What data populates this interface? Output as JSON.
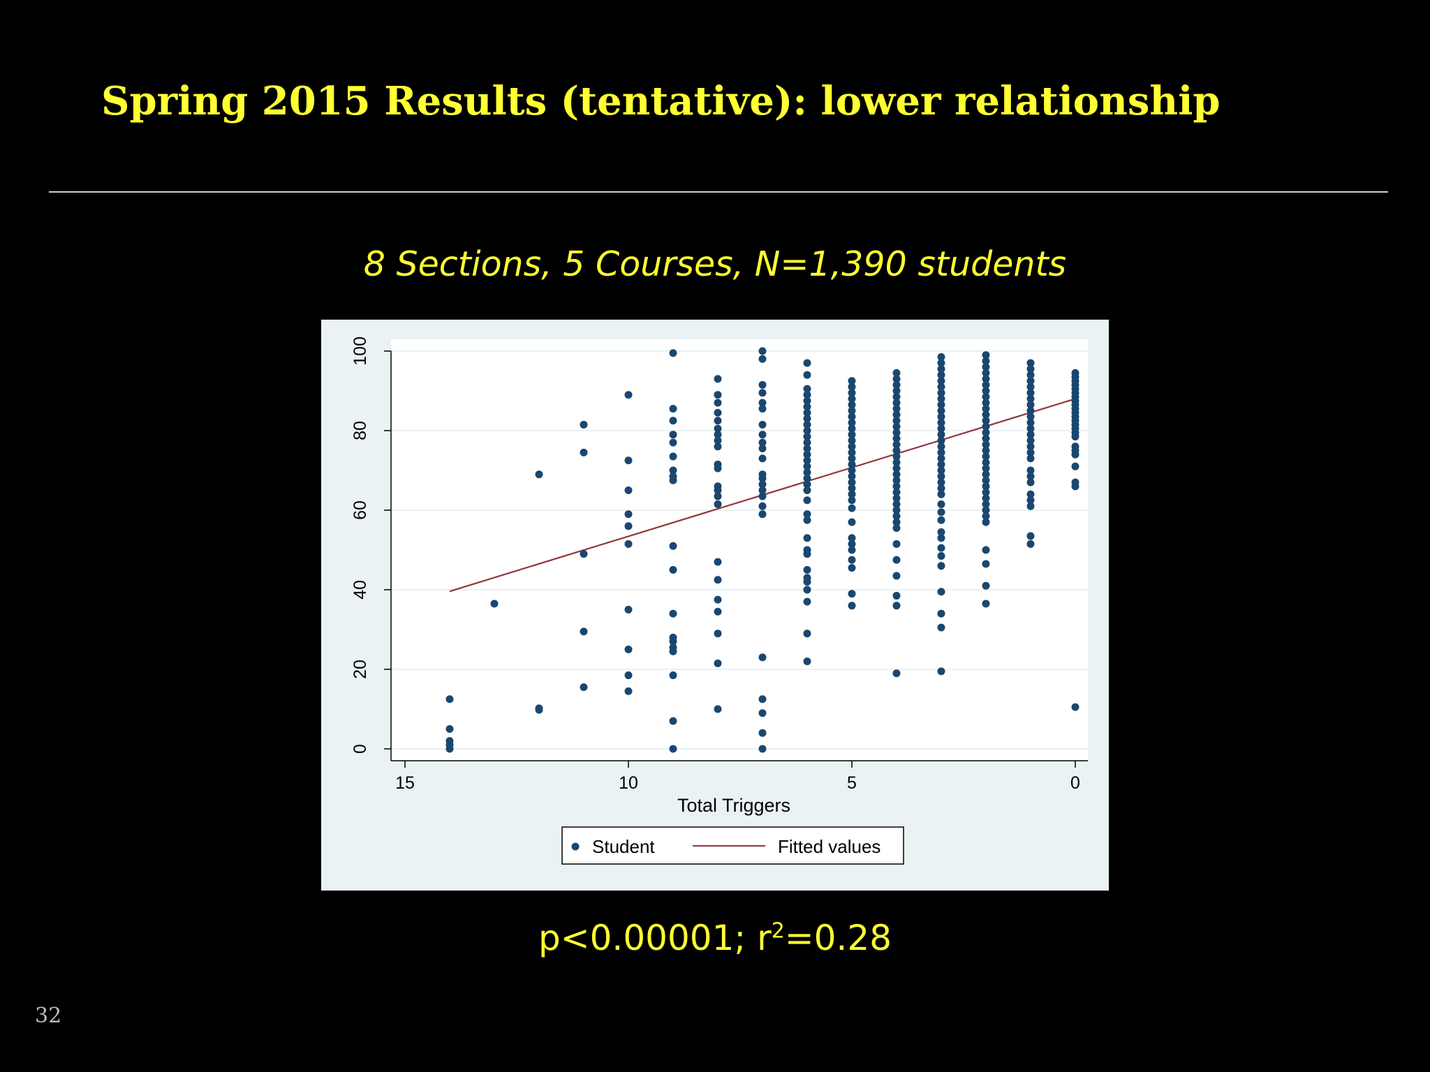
{
  "slide": {
    "title": "Spring 2015 Results (tentative): lower relationship",
    "subtitle": "8 Sections, 5 Courses, N=1,390 students",
    "stats_prefix": "p<0.00001; r",
    "stats_sup": "2",
    "stats_suffix": "=0.28",
    "page_number": "32"
  },
  "colors": {
    "title": "#ffff33",
    "background": "#000000",
    "marker": "#1a476f",
    "fit_line": "#90353b",
    "plot_region": "#eaf2f3"
  },
  "chart_data": {
    "type": "scatter",
    "xlabel": "Total Triggers",
    "ylabel": "",
    "xlim": [
      15,
      0
    ],
    "ylim": [
      0,
      100
    ],
    "x_reversed": true,
    "x_ticks": [
      15,
      10,
      5,
      0
    ],
    "y_ticks": [
      0,
      20,
      40,
      60,
      80,
      100
    ],
    "grid": true,
    "legend": {
      "placement": "bottom",
      "entries": [
        "Student",
        "Fitted values"
      ]
    },
    "series": [
      {
        "name": "Student",
        "kind": "points",
        "points": [
          [
            14,
            12.5
          ],
          [
            14,
            5
          ],
          [
            14,
            2
          ],
          [
            14,
            1
          ],
          [
            14,
            0
          ],
          [
            13,
            36.5
          ],
          [
            12,
            69
          ],
          [
            12,
            10.2
          ],
          [
            12,
            9.8
          ],
          [
            11,
            81.5
          ],
          [
            11,
            74.5
          ],
          [
            11,
            49
          ],
          [
            11,
            29.5
          ],
          [
            11,
            15.5
          ],
          [
            10,
            89
          ],
          [
            10,
            72.5
          ],
          [
            10,
            65
          ],
          [
            10,
            59
          ],
          [
            10,
            56
          ],
          [
            10,
            51.5
          ],
          [
            10,
            35
          ],
          [
            10,
            25
          ],
          [
            10,
            18.5
          ],
          [
            10,
            14.5
          ],
          [
            9,
            99.5
          ],
          [
            9,
            85.5
          ],
          [
            9,
            82.5
          ],
          [
            9,
            79
          ],
          [
            9,
            77
          ],
          [
            9,
            73.5
          ],
          [
            9,
            70
          ],
          [
            9,
            68.5
          ],
          [
            9,
            67.5
          ],
          [
            9,
            51
          ],
          [
            9,
            45
          ],
          [
            9,
            34
          ],
          [
            9,
            28
          ],
          [
            9,
            27
          ],
          [
            9,
            25.5
          ],
          [
            9,
            24.5
          ],
          [
            9,
            18.5
          ],
          [
            9,
            7
          ],
          [
            9,
            0
          ],
          [
            8,
            93
          ],
          [
            8,
            89
          ],
          [
            8,
            87
          ],
          [
            8,
            84.5
          ],
          [
            8,
            82.5
          ],
          [
            8,
            80.5
          ],
          [
            8,
            79
          ],
          [
            8,
            77.5
          ],
          [
            8,
            76
          ],
          [
            8,
            71.5
          ],
          [
            8,
            70.5
          ],
          [
            8,
            66
          ],
          [
            8,
            65
          ],
          [
            8,
            63.5
          ],
          [
            8,
            61.5
          ],
          [
            8,
            47
          ],
          [
            8,
            42.5
          ],
          [
            8,
            37.5
          ],
          [
            8,
            34.5
          ],
          [
            8,
            29
          ],
          [
            8,
            21.5
          ],
          [
            8,
            10
          ],
          [
            7,
            100
          ],
          [
            7,
            98
          ],
          [
            7,
            91.5
          ],
          [
            7,
            89.5
          ],
          [
            7,
            87
          ],
          [
            7,
            85.5
          ],
          [
            7,
            81.5
          ],
          [
            7,
            79
          ],
          [
            7,
            77
          ],
          [
            7,
            75.5
          ],
          [
            7,
            73
          ],
          [
            7,
            69
          ],
          [
            7,
            68
          ],
          [
            7,
            66.5
          ],
          [
            7,
            65
          ],
          [
            7,
            63.5
          ],
          [
            7,
            61
          ],
          [
            7,
            59
          ],
          [
            7,
            23
          ],
          [
            7,
            12.5
          ],
          [
            7,
            9
          ],
          [
            7,
            4
          ],
          [
            7,
            0
          ],
          [
            6,
            97
          ],
          [
            6,
            94
          ],
          [
            6,
            90.5
          ],
          [
            6,
            89
          ],
          [
            6,
            87.5
          ],
          [
            6,
            86
          ],
          [
            6,
            84.5
          ],
          [
            6,
            83
          ],
          [
            6,
            81.5
          ],
          [
            6,
            80
          ],
          [
            6,
            78.5
          ],
          [
            6,
            77
          ],
          [
            6,
            75.5
          ],
          [
            6,
            74
          ],
          [
            6,
            72.5
          ],
          [
            6,
            71
          ],
          [
            6,
            69.5
          ],
          [
            6,
            68
          ],
          [
            6,
            66.5
          ],
          [
            6,
            65
          ],
          [
            6,
            62.5
          ],
          [
            6,
            59
          ],
          [
            6,
            57.5
          ],
          [
            6,
            53
          ],
          [
            6,
            50
          ],
          [
            6,
            49
          ],
          [
            6,
            45
          ],
          [
            6,
            43
          ],
          [
            6,
            42
          ],
          [
            6,
            40
          ],
          [
            6,
            37
          ],
          [
            6,
            29
          ],
          [
            6,
            22
          ],
          [
            5,
            92.5
          ],
          [
            5,
            91
          ],
          [
            5,
            89.5
          ],
          [
            5,
            88
          ],
          [
            5,
            86.5
          ],
          [
            5,
            85
          ],
          [
            5,
            83.5
          ],
          [
            5,
            82
          ],
          [
            5,
            80.5
          ],
          [
            5,
            79
          ],
          [
            5,
            77.5
          ],
          [
            5,
            76
          ],
          [
            5,
            74.5
          ],
          [
            5,
            73
          ],
          [
            5,
            71.5
          ],
          [
            5,
            70
          ],
          [
            5,
            68.5
          ],
          [
            5,
            67
          ],
          [
            5,
            65.5
          ],
          [
            5,
            64
          ],
          [
            5,
            62.5
          ],
          [
            5,
            60.5
          ],
          [
            5,
            57
          ],
          [
            5,
            53
          ],
          [
            5,
            51.5
          ],
          [
            5,
            50
          ],
          [
            5,
            47.5
          ],
          [
            5,
            45.5
          ],
          [
            5,
            39
          ],
          [
            5,
            36
          ],
          [
            4,
            94.5
          ],
          [
            4,
            93
          ],
          [
            4,
            91.5
          ],
          [
            4,
            90
          ],
          [
            4,
            88.5
          ],
          [
            4,
            87
          ],
          [
            4,
            85.5
          ],
          [
            4,
            84
          ],
          [
            4,
            82.5
          ],
          [
            4,
            81
          ],
          [
            4,
            79.5
          ],
          [
            4,
            78
          ],
          [
            4,
            76.5
          ],
          [
            4,
            75
          ],
          [
            4,
            73.5
          ],
          [
            4,
            72
          ],
          [
            4,
            70.5
          ],
          [
            4,
            69
          ],
          [
            4,
            67.5
          ],
          [
            4,
            66
          ],
          [
            4,
            64.5
          ],
          [
            4,
            63
          ],
          [
            4,
            61.5
          ],
          [
            4,
            60
          ],
          [
            4,
            58.5
          ],
          [
            4,
            57
          ],
          [
            4,
            55.5
          ],
          [
            4,
            51.5
          ],
          [
            4,
            47.5
          ],
          [
            4,
            43.5
          ],
          [
            4,
            38.5
          ],
          [
            4,
            36
          ],
          [
            4,
            19
          ],
          [
            3,
            98.5
          ],
          [
            3,
            97
          ],
          [
            3,
            95.5
          ],
          [
            3,
            94
          ],
          [
            3,
            92.5
          ],
          [
            3,
            91
          ],
          [
            3,
            89.5
          ],
          [
            3,
            88
          ],
          [
            3,
            86.5
          ],
          [
            3,
            85
          ],
          [
            3,
            83.5
          ],
          [
            3,
            82
          ],
          [
            3,
            80.5
          ],
          [
            3,
            79
          ],
          [
            3,
            77.5
          ],
          [
            3,
            76
          ],
          [
            3,
            74.5
          ],
          [
            3,
            73
          ],
          [
            3,
            71.5
          ],
          [
            3,
            70
          ],
          [
            3,
            68.5
          ],
          [
            3,
            67
          ],
          [
            3,
            65.5
          ],
          [
            3,
            64
          ],
          [
            3,
            61.5
          ],
          [
            3,
            59.5
          ],
          [
            3,
            57.5
          ],
          [
            3,
            54.5
          ],
          [
            3,
            53
          ],
          [
            3,
            50.5
          ],
          [
            3,
            48.5
          ],
          [
            3,
            46
          ],
          [
            3,
            39.5
          ],
          [
            3,
            34
          ],
          [
            3,
            30.5
          ],
          [
            3,
            19.5
          ],
          [
            2,
            99
          ],
          [
            2,
            97.5
          ],
          [
            2,
            96
          ],
          [
            2,
            94.5
          ],
          [
            2,
            93
          ],
          [
            2,
            91.5
          ],
          [
            2,
            90
          ],
          [
            2,
            88.5
          ],
          [
            2,
            87
          ],
          [
            2,
            85.5
          ],
          [
            2,
            84
          ],
          [
            2,
            82.5
          ],
          [
            2,
            81
          ],
          [
            2,
            79.5
          ],
          [
            2,
            78
          ],
          [
            2,
            76.5
          ],
          [
            2,
            75
          ],
          [
            2,
            73.5
          ],
          [
            2,
            72
          ],
          [
            2,
            70.5
          ],
          [
            2,
            69
          ],
          [
            2,
            67.5
          ],
          [
            2,
            66
          ],
          [
            2,
            64.5
          ],
          [
            2,
            63
          ],
          [
            2,
            61.5
          ],
          [
            2,
            60
          ],
          [
            2,
            58.5
          ],
          [
            2,
            57
          ],
          [
            2,
            50
          ],
          [
            2,
            46.5
          ],
          [
            2,
            41
          ],
          [
            2,
            36.5
          ],
          [
            1,
            97
          ],
          [
            1,
            95.5
          ],
          [
            1,
            94
          ],
          [
            1,
            92.5
          ],
          [
            1,
            91
          ],
          [
            1,
            89.5
          ],
          [
            1,
            88
          ],
          [
            1,
            86.5
          ],
          [
            1,
            85
          ],
          [
            1,
            83.5
          ],
          [
            1,
            82
          ],
          [
            1,
            80.5
          ],
          [
            1,
            79
          ],
          [
            1,
            77.5
          ],
          [
            1,
            76
          ],
          [
            1,
            74.5
          ],
          [
            1,
            73
          ],
          [
            1,
            70
          ],
          [
            1,
            68.5
          ],
          [
            1,
            67
          ],
          [
            1,
            64
          ],
          [
            1,
            62.5
          ],
          [
            1,
            61
          ],
          [
            1,
            53.5
          ],
          [
            1,
            51.5
          ],
          [
            0,
            94.5
          ],
          [
            0,
            93.5
          ],
          [
            0,
            92.5
          ],
          [
            0,
            91.5
          ],
          [
            0,
            90.5
          ],
          [
            0,
            89.5
          ],
          [
            0,
            88.5
          ],
          [
            0,
            87.5
          ],
          [
            0,
            86.5
          ],
          [
            0,
            85.5
          ],
          [
            0,
            84.5
          ],
          [
            0,
            83.5
          ],
          [
            0,
            82.5
          ],
          [
            0,
            81.5
          ],
          [
            0,
            80.5
          ],
          [
            0,
            79.5
          ],
          [
            0,
            78.5
          ],
          [
            0,
            76
          ],
          [
            0,
            75
          ],
          [
            0,
            74
          ],
          [
            0,
            71
          ],
          [
            0,
            67
          ],
          [
            0,
            66
          ],
          [
            0,
            10.5
          ]
        ]
      },
      {
        "name": "Fitted values",
        "kind": "line",
        "points": [
          [
            14,
            39.6
          ],
          [
            0,
            88.0
          ]
        ]
      }
    ]
  }
}
